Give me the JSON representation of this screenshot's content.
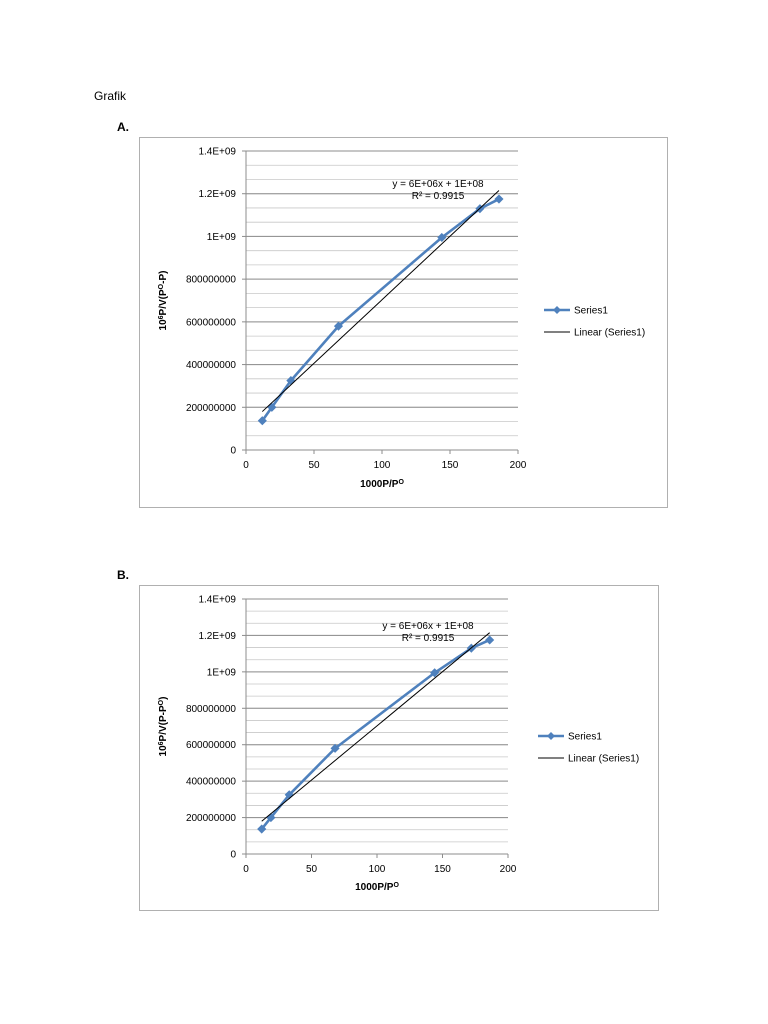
{
  "page": {
    "title": "Grafik",
    "section_a_label": "A.",
    "section_b_label": "B."
  },
  "chart_data": [
    {
      "type": "scatter",
      "title": "",
      "xlabel": "1000P/P",
      "xlabel_sup": "O",
      "ylabel": "10",
      "ylabel_sup": "6",
      "ylabel_rest": "P/V(P",
      "ylabel_sup2": "O",
      "ylabel_end": "-P)",
      "xlim": [
        0,
        200
      ],
      "ylim": [
        0,
        1400000000
      ],
      "x_ticks": [
        0,
        50,
        100,
        150,
        200
      ],
      "x_tick_labels": [
        "0",
        "50",
        "100",
        "150",
        "200"
      ],
      "y_ticks": [
        0,
        200000000,
        400000000,
        600000000,
        800000000,
        1000000000,
        1200000000,
        1400000000
      ],
      "y_tick_labels": [
        "0",
        "200000000",
        "400000000",
        "600000000",
        "800000000",
        "1E+09",
        "1.2E+09",
        "1.4E+09"
      ],
      "grid": true,
      "legend_position": "right",
      "series": [
        {
          "name": "Series1",
          "color": "#4f81bd",
          "marker": "diamond",
          "x": [
            12,
            19,
            33,
            68,
            144,
            172,
            186
          ],
          "y": [
            137000000,
            200000000,
            325000000,
            580000000,
            995000000,
            1130000000,
            1175000000
          ]
        }
      ],
      "trendline": {
        "name": "Linear (Series1)",
        "color": "#000000",
        "equation": "y = 6E+06x + 1E+08",
        "r2": "R² = 0.9915",
        "x": [
          12,
          186
        ],
        "y": [
          180000000,
          1215000000
        ]
      }
    },
    {
      "type": "scatter",
      "title": "",
      "xlabel": "1000P/P",
      "xlabel_sup": "O",
      "ylabel": "10",
      "ylabel_sup": "6",
      "ylabel_rest": "P/V(P-P",
      "ylabel_sup2": "O",
      "ylabel_end": ")",
      "xlim": [
        0,
        200
      ],
      "ylim": [
        0,
        1400000000
      ],
      "x_ticks": [
        0,
        50,
        100,
        150,
        200
      ],
      "x_tick_labels": [
        "0",
        "50",
        "100",
        "150",
        "200"
      ],
      "y_ticks": [
        0,
        200000000,
        400000000,
        600000000,
        800000000,
        1000000000,
        1200000000,
        1400000000
      ],
      "y_tick_labels": [
        "0",
        "200000000",
        "400000000",
        "600000000",
        "800000000",
        "1E+09",
        "1.2E+09",
        "1.4E+09"
      ],
      "grid": true,
      "legend_position": "right",
      "series": [
        {
          "name": "Series1",
          "color": "#4f81bd",
          "marker": "diamond",
          "x": [
            12,
            19,
            33,
            68,
            144,
            172,
            186
          ],
          "y": [
            137000000,
            200000000,
            325000000,
            580000000,
            995000000,
            1130000000,
            1175000000
          ]
        }
      ],
      "trendline": {
        "name": "Linear (Series1)",
        "color": "#000000",
        "equation": "y = 6E+06x + 1E+08",
        "r2": "R² = 0.9915",
        "x": [
          12,
          186
        ],
        "y": [
          180000000,
          1215000000
        ]
      }
    }
  ]
}
